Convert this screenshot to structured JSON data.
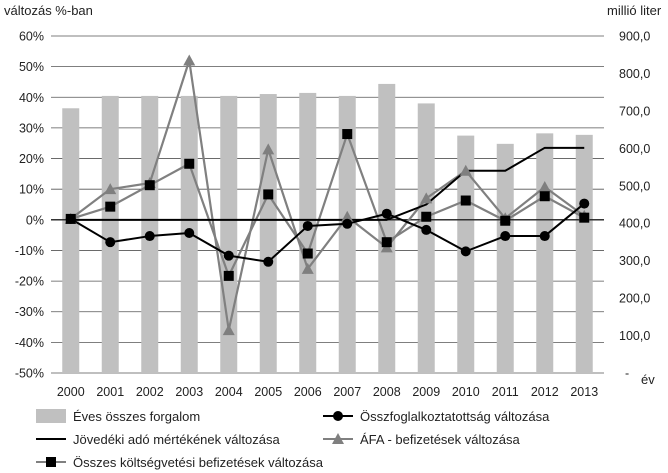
{
  "chart_data": {
    "type": "bar+line",
    "title": "",
    "ylabel_left": "változás %-ban",
    "ylabel_right": "millió liter",
    "xlabel": "év",
    "categories": [
      "2000",
      "2001",
      "2002",
      "2003",
      "2004",
      "2005",
      "2006",
      "2007",
      "2008",
      "2009",
      "2010",
      "2011",
      "2012",
      "2013"
    ],
    "ylim_left": [
      -50,
      60
    ],
    "ylim_right": [
      0,
      900
    ],
    "yticks_left": [
      "60%",
      "50%",
      "40%",
      "30%",
      "20%",
      "10%",
      "0%",
      "-10%",
      "-20%",
      "-30%",
      "-40%",
      "-50%"
    ],
    "yticks_right": [
      "900,0",
      "800,0",
      "700,0",
      "600,0",
      "500,0",
      "400,0",
      "300,0",
      "200,0",
      "100,0",
      "-"
    ],
    "grid": true,
    "series": [
      {
        "name": "Éves összes forgalom",
        "kind": "bar",
        "axis": "right",
        "color": "#c0c0c0",
        "values": [
          707,
          740,
          740,
          740,
          740,
          745,
          748,
          740,
          772,
          720,
          634,
          612,
          640,
          636
        ]
      },
      {
        "name": "Összfoglalkoztatottság változása",
        "kind": "line",
        "marker": "circle",
        "axis": "left",
        "color": "#000000",
        "values": [
          0.3,
          -7.3,
          -5.3,
          -4.3,
          -11.7,
          -13.7,
          -2.0,
          -1.3,
          2.0,
          -3.3,
          -10.3,
          -5.3,
          -5.3,
          5.3
        ]
      },
      {
        "name": "Jövedéki adó mértékének változása",
        "kind": "line",
        "marker": "none",
        "axis": "left",
        "color": "#000000",
        "values": [
          0,
          0,
          0,
          0,
          0,
          0,
          0,
          0,
          0,
          5,
          16,
          16,
          23.5,
          23.5
        ]
      },
      {
        "name": "ÁFA - befizetések változása",
        "kind": "line",
        "marker": "triangle",
        "axis": "left",
        "color": "#808080",
        "values": [
          0.3,
          10,
          12,
          52,
          -36,
          23,
          -16,
          1,
          -9,
          7,
          16,
          0.5,
          10.7,
          1.3
        ]
      },
      {
        "name": "Összes költségvetési befizetések változása",
        "kind": "line",
        "marker": "square",
        "axis": "left",
        "color": "#808080",
        "values": [
          0.3,
          4.3,
          11.3,
          18.3,
          -18.3,
          8.3,
          -11,
          28,
          -7.3,
          1,
          6.3,
          -0.3,
          7.7,
          0.7
        ]
      }
    ]
  }
}
